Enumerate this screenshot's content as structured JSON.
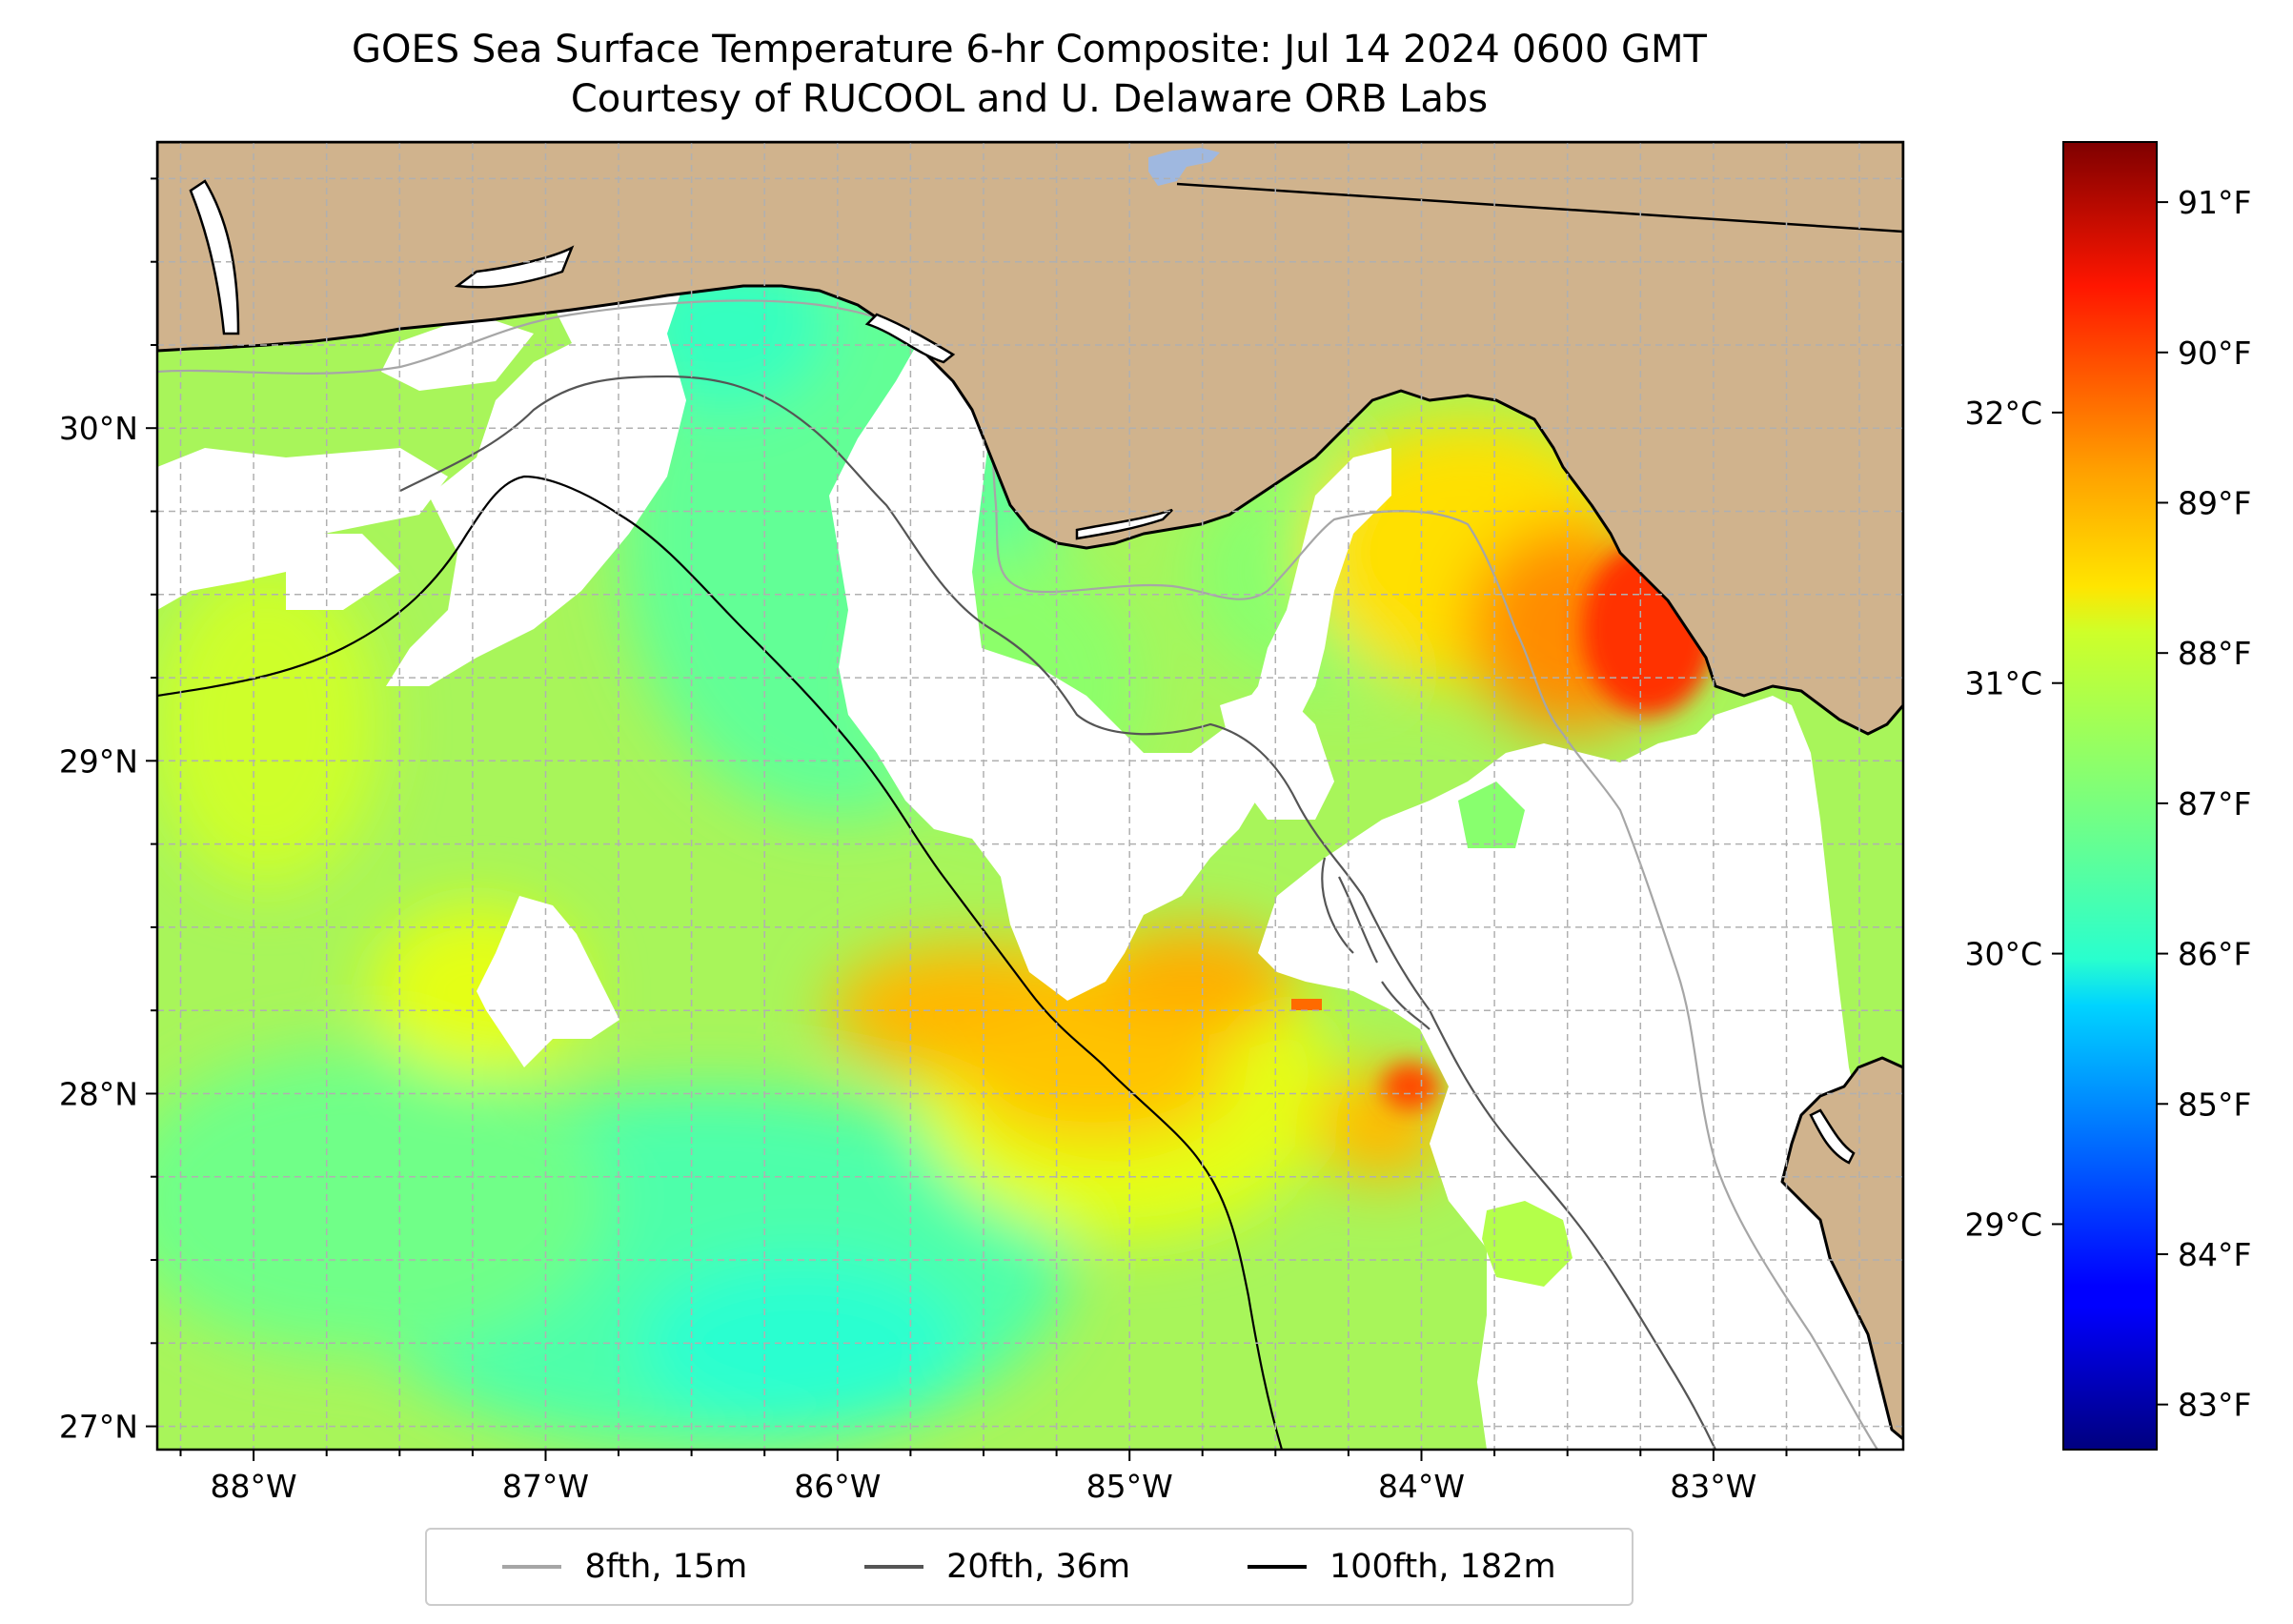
{
  "title": {
    "line1": "GOES Sea Surface Temperature 6-hr Composite: Jul 14 2024 0600 GMT",
    "line2": "Courtesy of RUCOOL and U. Delaware ORB Labs"
  },
  "map": {
    "lon_range": [
      -88.33,
      -82.35
    ],
    "lat_range": [
      26.93,
      30.86
    ],
    "lon_ticks": [
      {
        "value": -88,
        "label": "88°W"
      },
      {
        "value": -87,
        "label": "87°W"
      },
      {
        "value": -86,
        "label": "86°W"
      },
      {
        "value": -85,
        "label": "85°W"
      },
      {
        "value": -84,
        "label": "84°W"
      },
      {
        "value": -83,
        "label": "83°W"
      }
    ],
    "lat_ticks": [
      {
        "value": 27,
        "label": "27°N"
      },
      {
        "value": 28,
        "label": "28°N"
      },
      {
        "value": 29,
        "label": "29°N"
      },
      {
        "value": 30,
        "label": "30°N"
      }
    ],
    "colors": {
      "land": "#d0b38d",
      "coast": "#000000",
      "lake": "#9fb8e0",
      "grid": "#b0b0b0",
      "no_data": "#ffffff"
    }
  },
  "colorbar": {
    "celsius_ticks": [
      {
        "value": 29,
        "label": "29°C"
      },
      {
        "value": 30,
        "label": "30°C"
      },
      {
        "value": 31,
        "label": "31°C"
      },
      {
        "value": 32,
        "label": "32°C"
      }
    ],
    "fahrenheit_ticks": [
      {
        "value": 83,
        "label": "83°F"
      },
      {
        "value": 84,
        "label": "84°F"
      },
      {
        "value": 85,
        "label": "85°F"
      },
      {
        "value": 86,
        "label": "86°F"
      },
      {
        "value": 87,
        "label": "87°F"
      },
      {
        "value": 88,
        "label": "88°F"
      },
      {
        "value": 89,
        "label": "89°F"
      },
      {
        "value": 90,
        "label": "90°F"
      },
      {
        "value": 91,
        "label": "91°F"
      }
    ],
    "range_f": [
      82.7,
      91.4
    ],
    "colormap": "jet"
  },
  "legend": {
    "items": [
      {
        "label": "8fth, 15m",
        "color": "#a6a6a6"
      },
      {
        "label": "20fth, 36m",
        "color": "#555555"
      },
      {
        "label": "100fth, 182m",
        "color": "#000000"
      }
    ]
  }
}
